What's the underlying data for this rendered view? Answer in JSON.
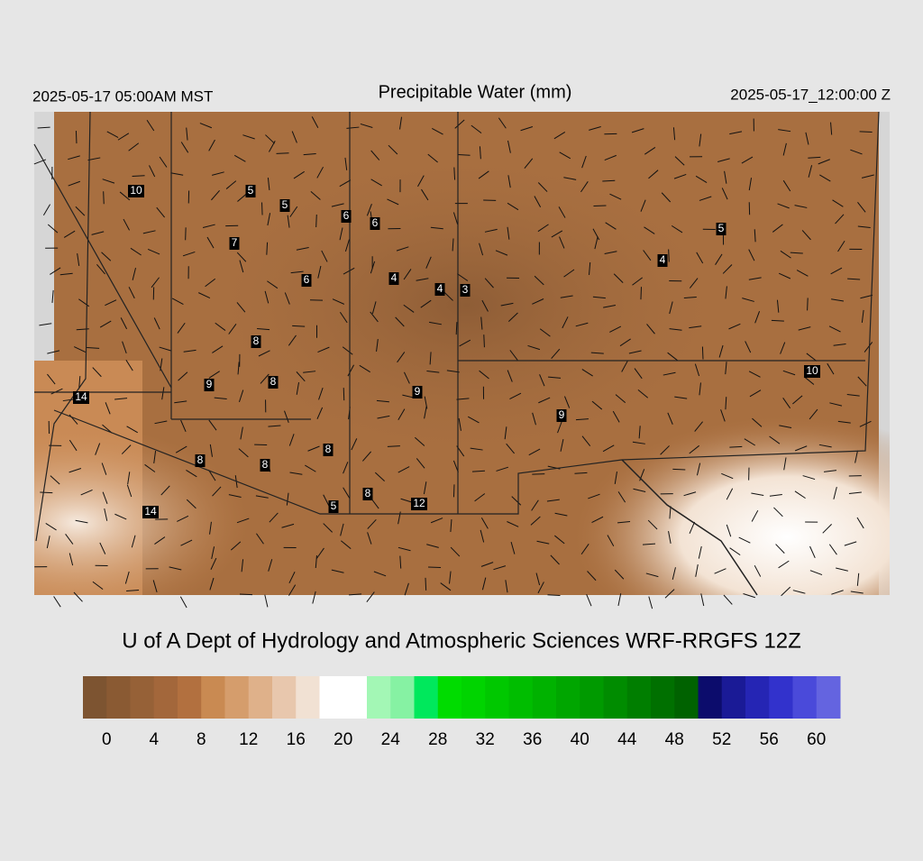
{
  "header": {
    "valid_local": "2025-05-17 05:00AM MST",
    "title": "Precipitable Water (mm)",
    "valid_utc": "2025-05-17_12:00:00 Z"
  },
  "stations": [
    10,
    5,
    5,
    6,
    6,
    7,
    6,
    4,
    4,
    3,
    5,
    4,
    8,
    9,
    8,
    9,
    9,
    10,
    14,
    8,
    8,
    8,
    8,
    5,
    12,
    14
  ],
  "credit": "U of A Dept of Hydrology and Atmospheric Sciences WRF-RRGFS 12Z",
  "colorbar": {
    "colors": [
      "#7d5431",
      "#8a5a33",
      "#966137",
      "#a3673b",
      "#b2703f",
      "#c98a52",
      "#d59d6c",
      "#dfb18a",
      "#e8c7ad",
      "#f1e1d3",
      "#ffffff",
      "#ffffff",
      "#a3f7b5",
      "#86f2a3",
      "#00e85c",
      "#00dc00",
      "#00d400",
      "#00c800",
      "#00bd00",
      "#00b200",
      "#00a600",
      "#009a00",
      "#008c00",
      "#007e00",
      "#007000",
      "#006200",
      "#0c0c6c",
      "#1a1a96",
      "#2525b4",
      "#3232cc",
      "#4a4ada",
      "#6464e0"
    ],
    "ticks": [
      0,
      4,
      8,
      12,
      16,
      20,
      24,
      28,
      32,
      36,
      40,
      44,
      48,
      52,
      56,
      60
    ]
  }
}
